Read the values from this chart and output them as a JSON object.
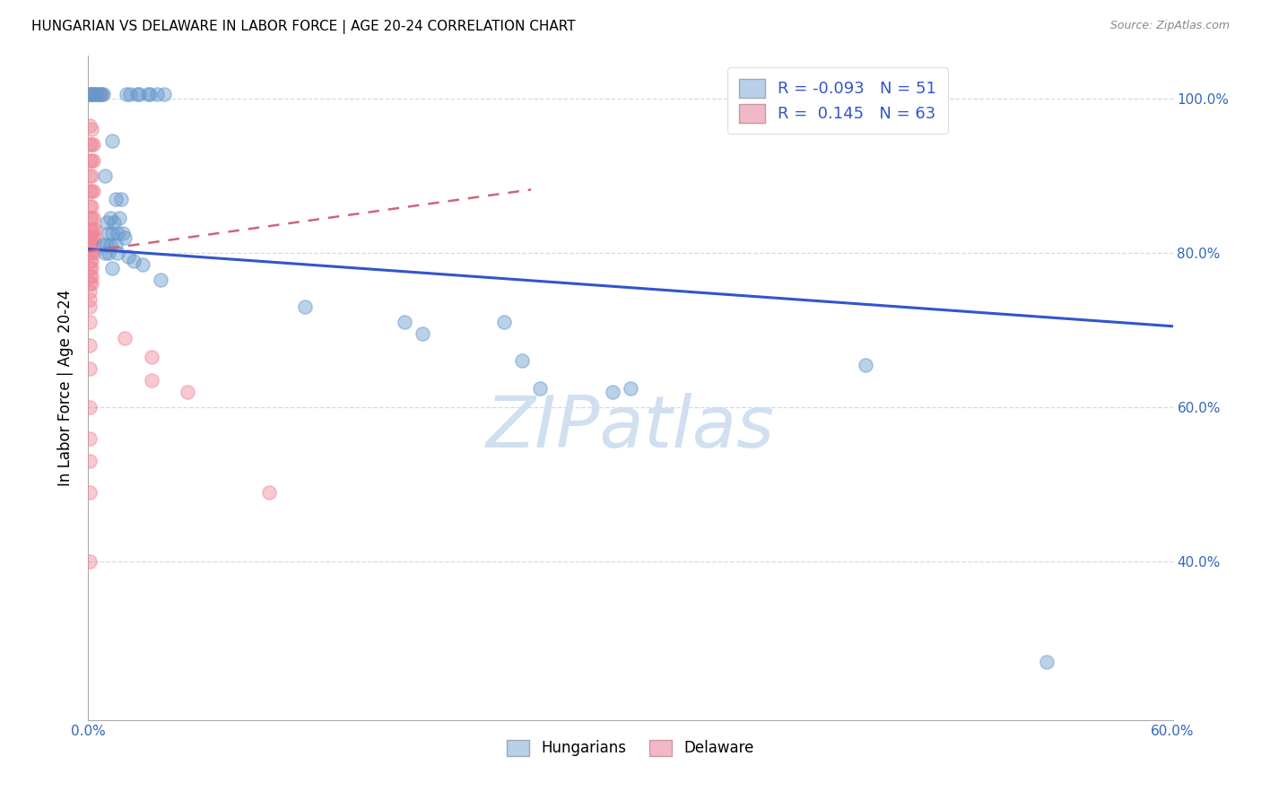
{
  "title": "HUNGARIAN VS DELAWARE IN LABOR FORCE | AGE 20-24 CORRELATION CHART",
  "source": "Source: ZipAtlas.com",
  "ylabel": "In Labor Force | Age 20-24",
  "x_min": 0.0,
  "x_max": 0.6,
  "y_min": 0.195,
  "y_max": 1.055,
  "x_tick_positions": [
    0.0,
    0.1,
    0.2,
    0.3,
    0.4,
    0.5,
    0.6
  ],
  "x_tick_labels": [
    "0.0%",
    "",
    "",
    "",
    "",
    "",
    "60.0%"
  ],
  "y_tick_positions": [
    0.4,
    0.6,
    0.8,
    1.0
  ],
  "y_tick_labels": [
    "40.0%",
    "60.0%",
    "80.0%",
    "100.0%"
  ],
  "blue_scatter_color": "#6699cc",
  "pink_scatter_color": "#ee8899",
  "blue_line_color": "#3355cc",
  "pink_line_color": "#cc6677",
  "grid_color": "#ccdded",
  "watermark": "ZIPatlas",
  "watermark_color": "#d0e0f0",
  "legend_blue_face": "#b8d0e8",
  "legend_pink_face": "#f0b8c8",
  "blue_line_x": [
    0.0,
    0.6
  ],
  "blue_line_y": [
    0.805,
    0.705
  ],
  "pink_line_x": [
    0.0,
    0.245
  ],
  "pink_line_y": [
    0.802,
    0.882
  ],
  "blue_points": [
    [
      0.001,
      1.005
    ],
    [
      0.002,
      1.005
    ],
    [
      0.003,
      1.005
    ],
    [
      0.004,
      1.005
    ],
    [
      0.005,
      1.005
    ],
    [
      0.006,
      1.005
    ],
    [
      0.007,
      1.005
    ],
    [
      0.008,
      1.005
    ],
    [
      0.021,
      1.005
    ],
    [
      0.023,
      1.005
    ],
    [
      0.027,
      1.005
    ],
    [
      0.028,
      1.005
    ],
    [
      0.033,
      1.005
    ],
    [
      0.034,
      1.005
    ],
    [
      0.038,
      1.005
    ],
    [
      0.042,
      1.005
    ],
    [
      0.013,
      0.945
    ],
    [
      0.009,
      0.9
    ],
    [
      0.015,
      0.87
    ],
    [
      0.018,
      0.87
    ],
    [
      0.01,
      0.84
    ],
    [
      0.012,
      0.845
    ],
    [
      0.014,
      0.84
    ],
    [
      0.017,
      0.845
    ],
    [
      0.011,
      0.825
    ],
    [
      0.013,
      0.825
    ],
    [
      0.016,
      0.825
    ],
    [
      0.019,
      0.825
    ],
    [
      0.02,
      0.82
    ],
    [
      0.008,
      0.81
    ],
    [
      0.01,
      0.81
    ],
    [
      0.012,
      0.81
    ],
    [
      0.015,
      0.81
    ],
    [
      0.009,
      0.8
    ],
    [
      0.011,
      0.8
    ],
    [
      0.016,
      0.8
    ],
    [
      0.022,
      0.795
    ],
    [
      0.025,
      0.79
    ],
    [
      0.013,
      0.78
    ],
    [
      0.03,
      0.785
    ],
    [
      0.04,
      0.765
    ],
    [
      0.12,
      0.73
    ],
    [
      0.175,
      0.71
    ],
    [
      0.185,
      0.695
    ],
    [
      0.23,
      0.71
    ],
    [
      0.24,
      0.66
    ],
    [
      0.25,
      0.625
    ],
    [
      0.29,
      0.62
    ],
    [
      0.3,
      0.625
    ],
    [
      0.43,
      0.655
    ],
    [
      0.53,
      0.27
    ]
  ],
  "pink_points": [
    [
      0.001,
      1.005
    ],
    [
      0.002,
      1.005
    ],
    [
      0.003,
      1.005
    ],
    [
      0.004,
      1.005
    ],
    [
      0.006,
      1.005
    ],
    [
      0.007,
      1.005
    ],
    [
      0.001,
      0.965
    ],
    [
      0.002,
      0.96
    ],
    [
      0.001,
      0.94
    ],
    [
      0.002,
      0.94
    ],
    [
      0.003,
      0.94
    ],
    [
      0.001,
      0.92
    ],
    [
      0.002,
      0.92
    ],
    [
      0.003,
      0.92
    ],
    [
      0.001,
      0.9
    ],
    [
      0.002,
      0.9
    ],
    [
      0.001,
      0.88
    ],
    [
      0.002,
      0.88
    ],
    [
      0.003,
      0.88
    ],
    [
      0.001,
      0.86
    ],
    [
      0.002,
      0.86
    ],
    [
      0.001,
      0.845
    ],
    [
      0.002,
      0.845
    ],
    [
      0.003,
      0.845
    ],
    [
      0.001,
      0.83
    ],
    [
      0.002,
      0.83
    ],
    [
      0.003,
      0.83
    ],
    [
      0.004,
      0.83
    ],
    [
      0.001,
      0.82
    ],
    [
      0.002,
      0.82
    ],
    [
      0.003,
      0.82
    ],
    [
      0.004,
      0.82
    ],
    [
      0.001,
      0.81
    ],
    [
      0.002,
      0.81
    ],
    [
      0.003,
      0.81
    ],
    [
      0.001,
      0.8
    ],
    [
      0.002,
      0.8
    ],
    [
      0.003,
      0.8
    ],
    [
      0.001,
      0.79
    ],
    [
      0.002,
      0.79
    ],
    [
      0.001,
      0.78
    ],
    [
      0.002,
      0.78
    ],
    [
      0.001,
      0.77
    ],
    [
      0.002,
      0.77
    ],
    [
      0.001,
      0.76
    ],
    [
      0.002,
      0.76
    ],
    [
      0.001,
      0.75
    ],
    [
      0.001,
      0.74
    ],
    [
      0.001,
      0.73
    ],
    [
      0.001,
      0.71
    ],
    [
      0.001,
      0.68
    ],
    [
      0.001,
      0.65
    ],
    [
      0.001,
      0.6
    ],
    [
      0.001,
      0.56
    ],
    [
      0.001,
      0.53
    ],
    [
      0.001,
      0.49
    ],
    [
      0.02,
      0.69
    ],
    [
      0.035,
      0.665
    ],
    [
      0.035,
      0.635
    ],
    [
      0.055,
      0.62
    ],
    [
      0.001,
      0.4
    ],
    [
      0.1,
      0.49
    ]
  ]
}
